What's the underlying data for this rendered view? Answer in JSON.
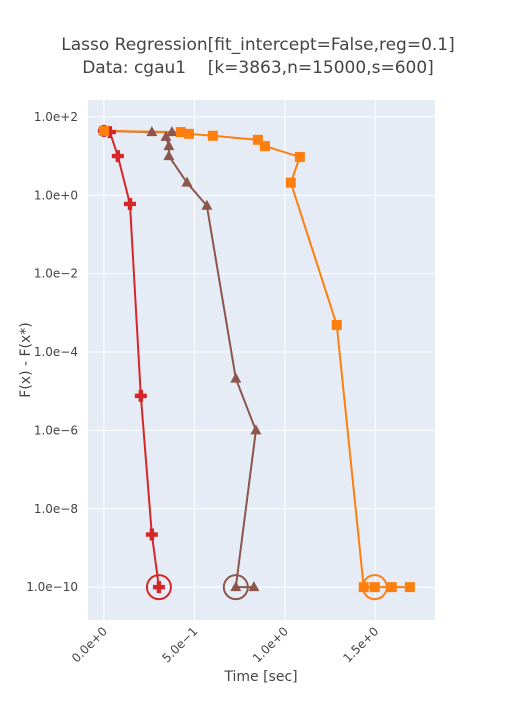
{
  "chart_data": {
    "type": "line",
    "title": "Lasso Regression[fit_intercept=False,reg=0.1]",
    "subtitle": "Data: cgau1    [k=3863,n=15000,s=600]",
    "xlabel": "Time [sec]",
    "ylabel": "F(x) - F(x*)",
    "log_y": true,
    "grid": true,
    "xlim": [
      -0.088,
      1.83
    ],
    "ylim": [
      1.45e-11,
      270
    ],
    "xticks": [
      {
        "value": 0,
        "label": "0.0e+0"
      },
      {
        "value": 0.5,
        "label": "5.0e−1"
      },
      {
        "value": 1,
        "label": "1.0e+0"
      },
      {
        "value": 1.5,
        "label": "1.5e+0"
      }
    ],
    "yticks": [
      {
        "value": 100,
        "label": "1.0e+2"
      },
      {
        "value": 1,
        "label": "1.0e+0"
      },
      {
        "value": 0.01,
        "label": "1.0e−2"
      },
      {
        "value": 0.0001,
        "label": "1.0e−4"
      },
      {
        "value": 1e-06,
        "label": "1.0e−6"
      },
      {
        "value": 1e-08,
        "label": "1.0e−8"
      },
      {
        "value": 1e-10,
        "label": "1.0e−10"
      }
    ],
    "series": [
      {
        "color": "#d62728",
        "marker": "cross",
        "x": [
          0,
          0.033,
          0.077,
          0.144,
          0.204,
          0.265,
          0.304
        ],
        "values": [
          44,
          41,
          10,
          0.6,
          7.6e-06,
          2.2e-09,
          1e-10
        ]
      },
      {
        "color": "#8c564b",
        "marker": "triangle",
        "x": [
          0,
          0.265,
          0.376,
          0.343,
          0.359,
          0.359,
          0.459,
          0.569,
          0.729,
          0.84,
          0.729,
          0.829
        ],
        "values": [
          44,
          41,
          41,
          31,
          18,
          10,
          2.1,
          0.54,
          2.1e-05,
          1e-06,
          1e-10,
          1e-10
        ]
      },
      {
        "color": "#ff7f0e",
        "marker": "square",
        "x": [
          0,
          0.425,
          0.47,
          0.602,
          0.851,
          0.89,
          1.083,
          1.033,
          1.287,
          1.436,
          1.497,
          1.591,
          1.691
        ],
        "values": [
          44,
          41,
          37,
          33,
          26,
          18,
          9.5,
          2.1,
          0.00049,
          1e-10,
          1e-10,
          1e-10,
          1e-10
        ]
      }
    ],
    "highlights": [
      {
        "x": 0.304,
        "y": 1e-10,
        "color": "#d62728"
      },
      {
        "x": 0.729,
        "y": 1e-10,
        "color": "#8c564b"
      },
      {
        "x": 1.497,
        "y": 1e-10,
        "color": "#ff7f0e"
      }
    ]
  }
}
